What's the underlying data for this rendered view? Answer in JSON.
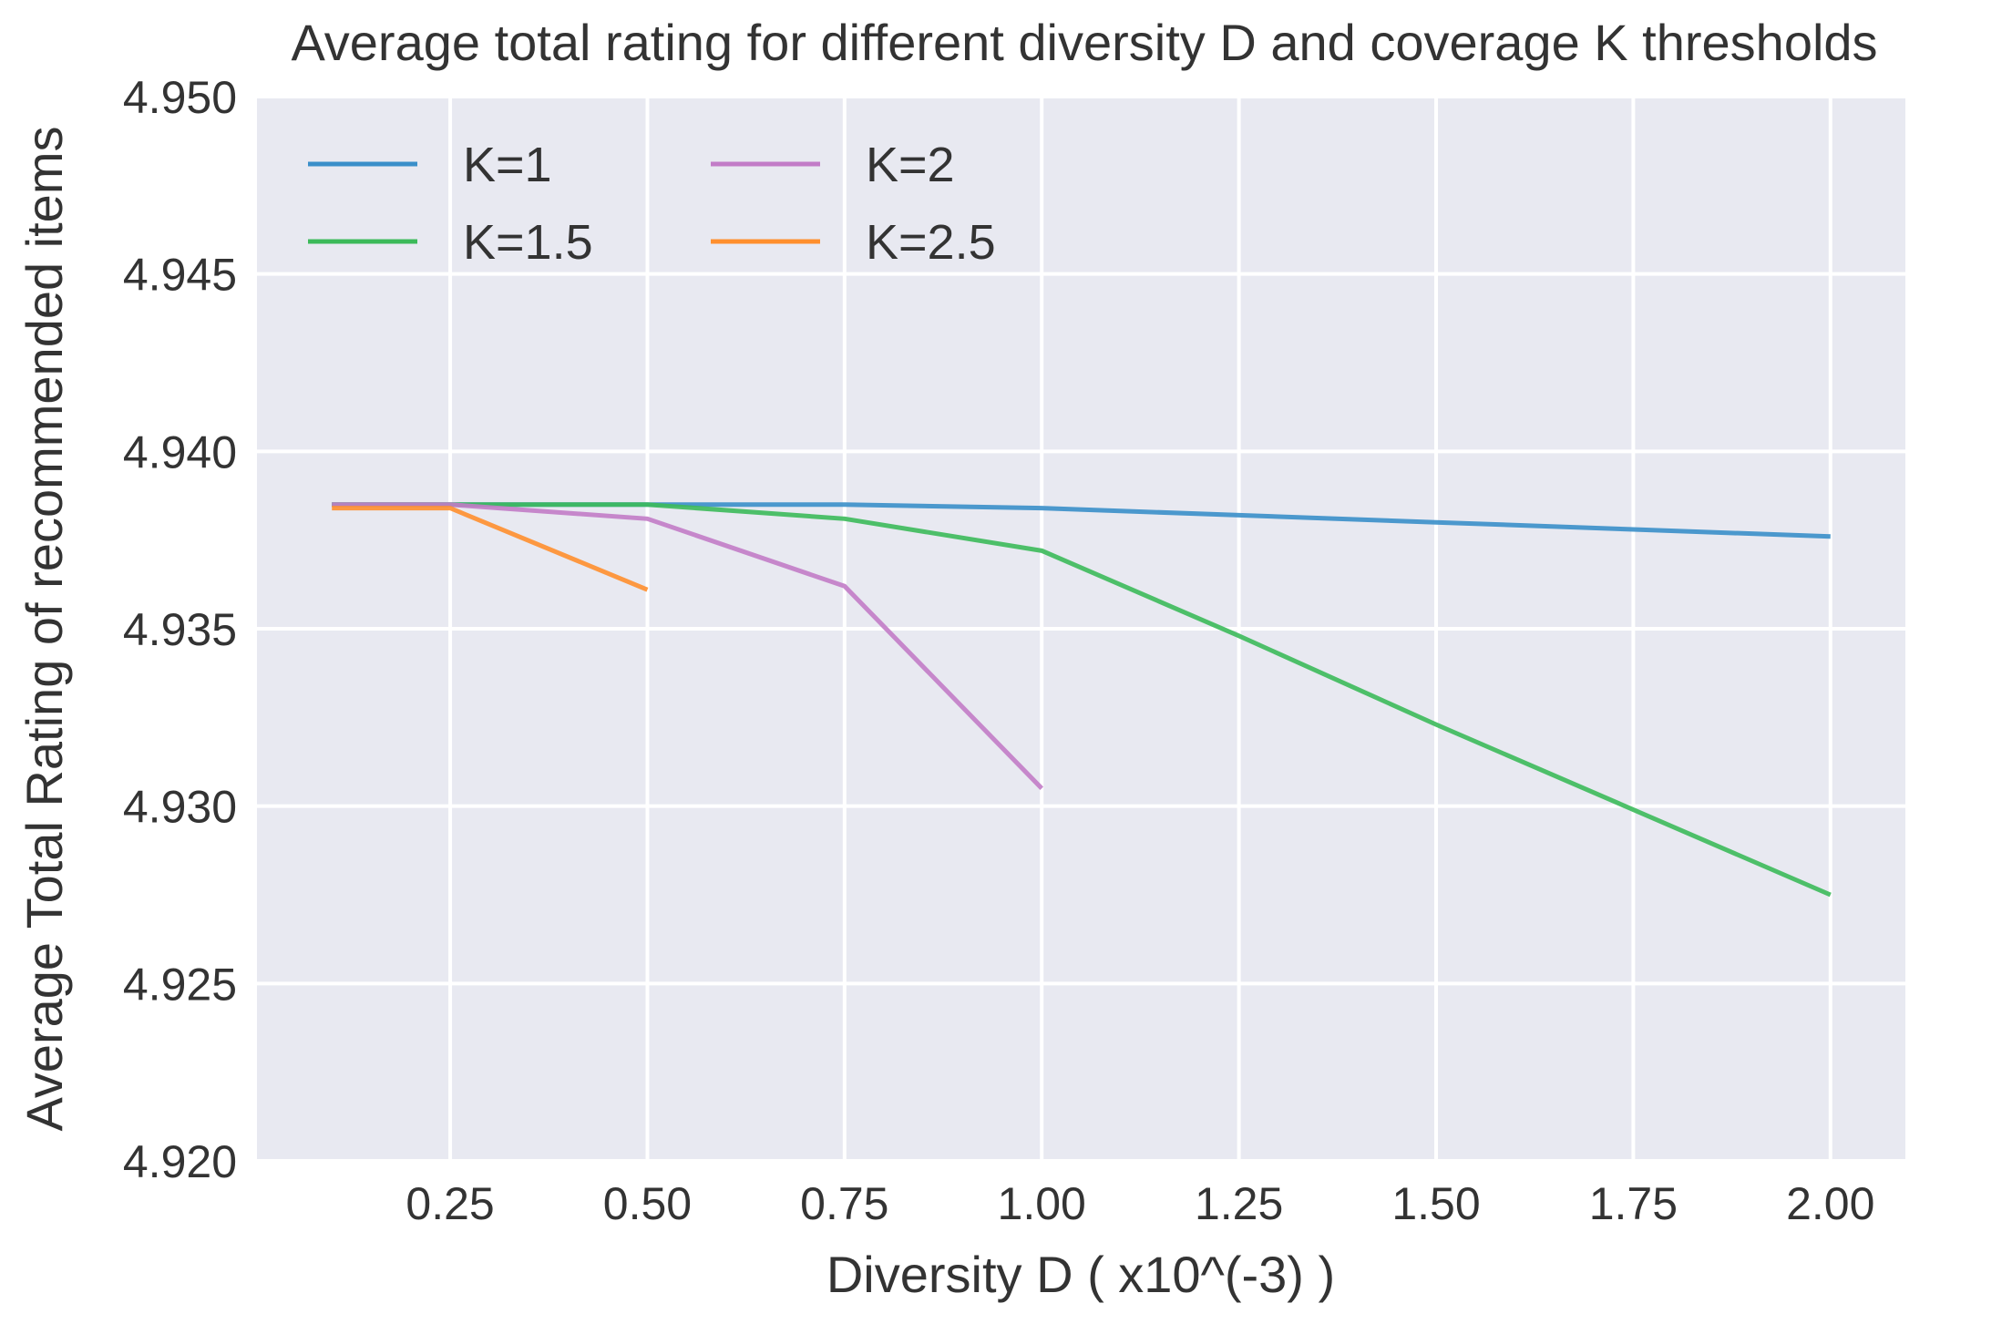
{
  "chart_data": {
    "type": "line",
    "title": "Average total rating for different diversity D and coverage K thresholds",
    "xlabel": "Diversity D ( x10^(-3) )",
    "ylabel": "Average Total Rating of recommended items",
    "xlim": [
      0.005,
      2.095
    ],
    "ylim": [
      4.92,
      4.95
    ],
    "grid": true,
    "legend_placement": "top-left",
    "xticks": [
      0.25,
      0.5,
      0.75,
      1.0,
      1.25,
      1.5,
      1.75,
      2.0
    ],
    "xtick_labels": [
      "0.25",
      "0.50",
      "0.75",
      "1.00",
      "1.25",
      "1.50",
      "1.75",
      "2.00"
    ],
    "yticks": [
      4.92,
      4.925,
      4.93,
      4.935,
      4.94,
      4.945,
      4.95
    ],
    "ytick_labels": [
      "4.920",
      "4.925",
      "4.930",
      "4.935",
      "4.940",
      "4.945",
      "4.950"
    ],
    "series": [
      {
        "name": "K=1",
        "color": "#3a8fc9",
        "x": [
          0.1,
          0.25,
          0.5,
          0.75,
          1.0,
          1.25,
          1.5,
          1.75,
          2.0
        ],
        "values": [
          4.9385,
          4.9385,
          4.9385,
          4.9385,
          4.9384,
          4.9382,
          4.938,
          4.9378,
          4.9376
        ]
      },
      {
        "name": "K=1.5",
        "color": "#3cba5a",
        "x": [
          0.1,
          0.25,
          0.5,
          0.75,
          1.0,
          1.25,
          1.5,
          1.75,
          2.0
        ],
        "values": [
          4.9385,
          4.9385,
          4.9385,
          4.9381,
          4.9372,
          4.9348,
          4.9323,
          4.9299,
          4.9275
        ]
      },
      {
        "name": "K=2",
        "color": "#c27cc7",
        "x": [
          0.1,
          0.25,
          0.5,
          0.75,
          1.0
        ],
        "values": [
          4.9385,
          4.9385,
          4.9381,
          4.9362,
          4.9305
        ]
      },
      {
        "name": "K=2.5",
        "color": "#ff8f2e",
        "x": [
          0.1,
          0.25,
          0.5
        ],
        "values": [
          4.9384,
          4.9384,
          4.9361
        ]
      }
    ]
  }
}
